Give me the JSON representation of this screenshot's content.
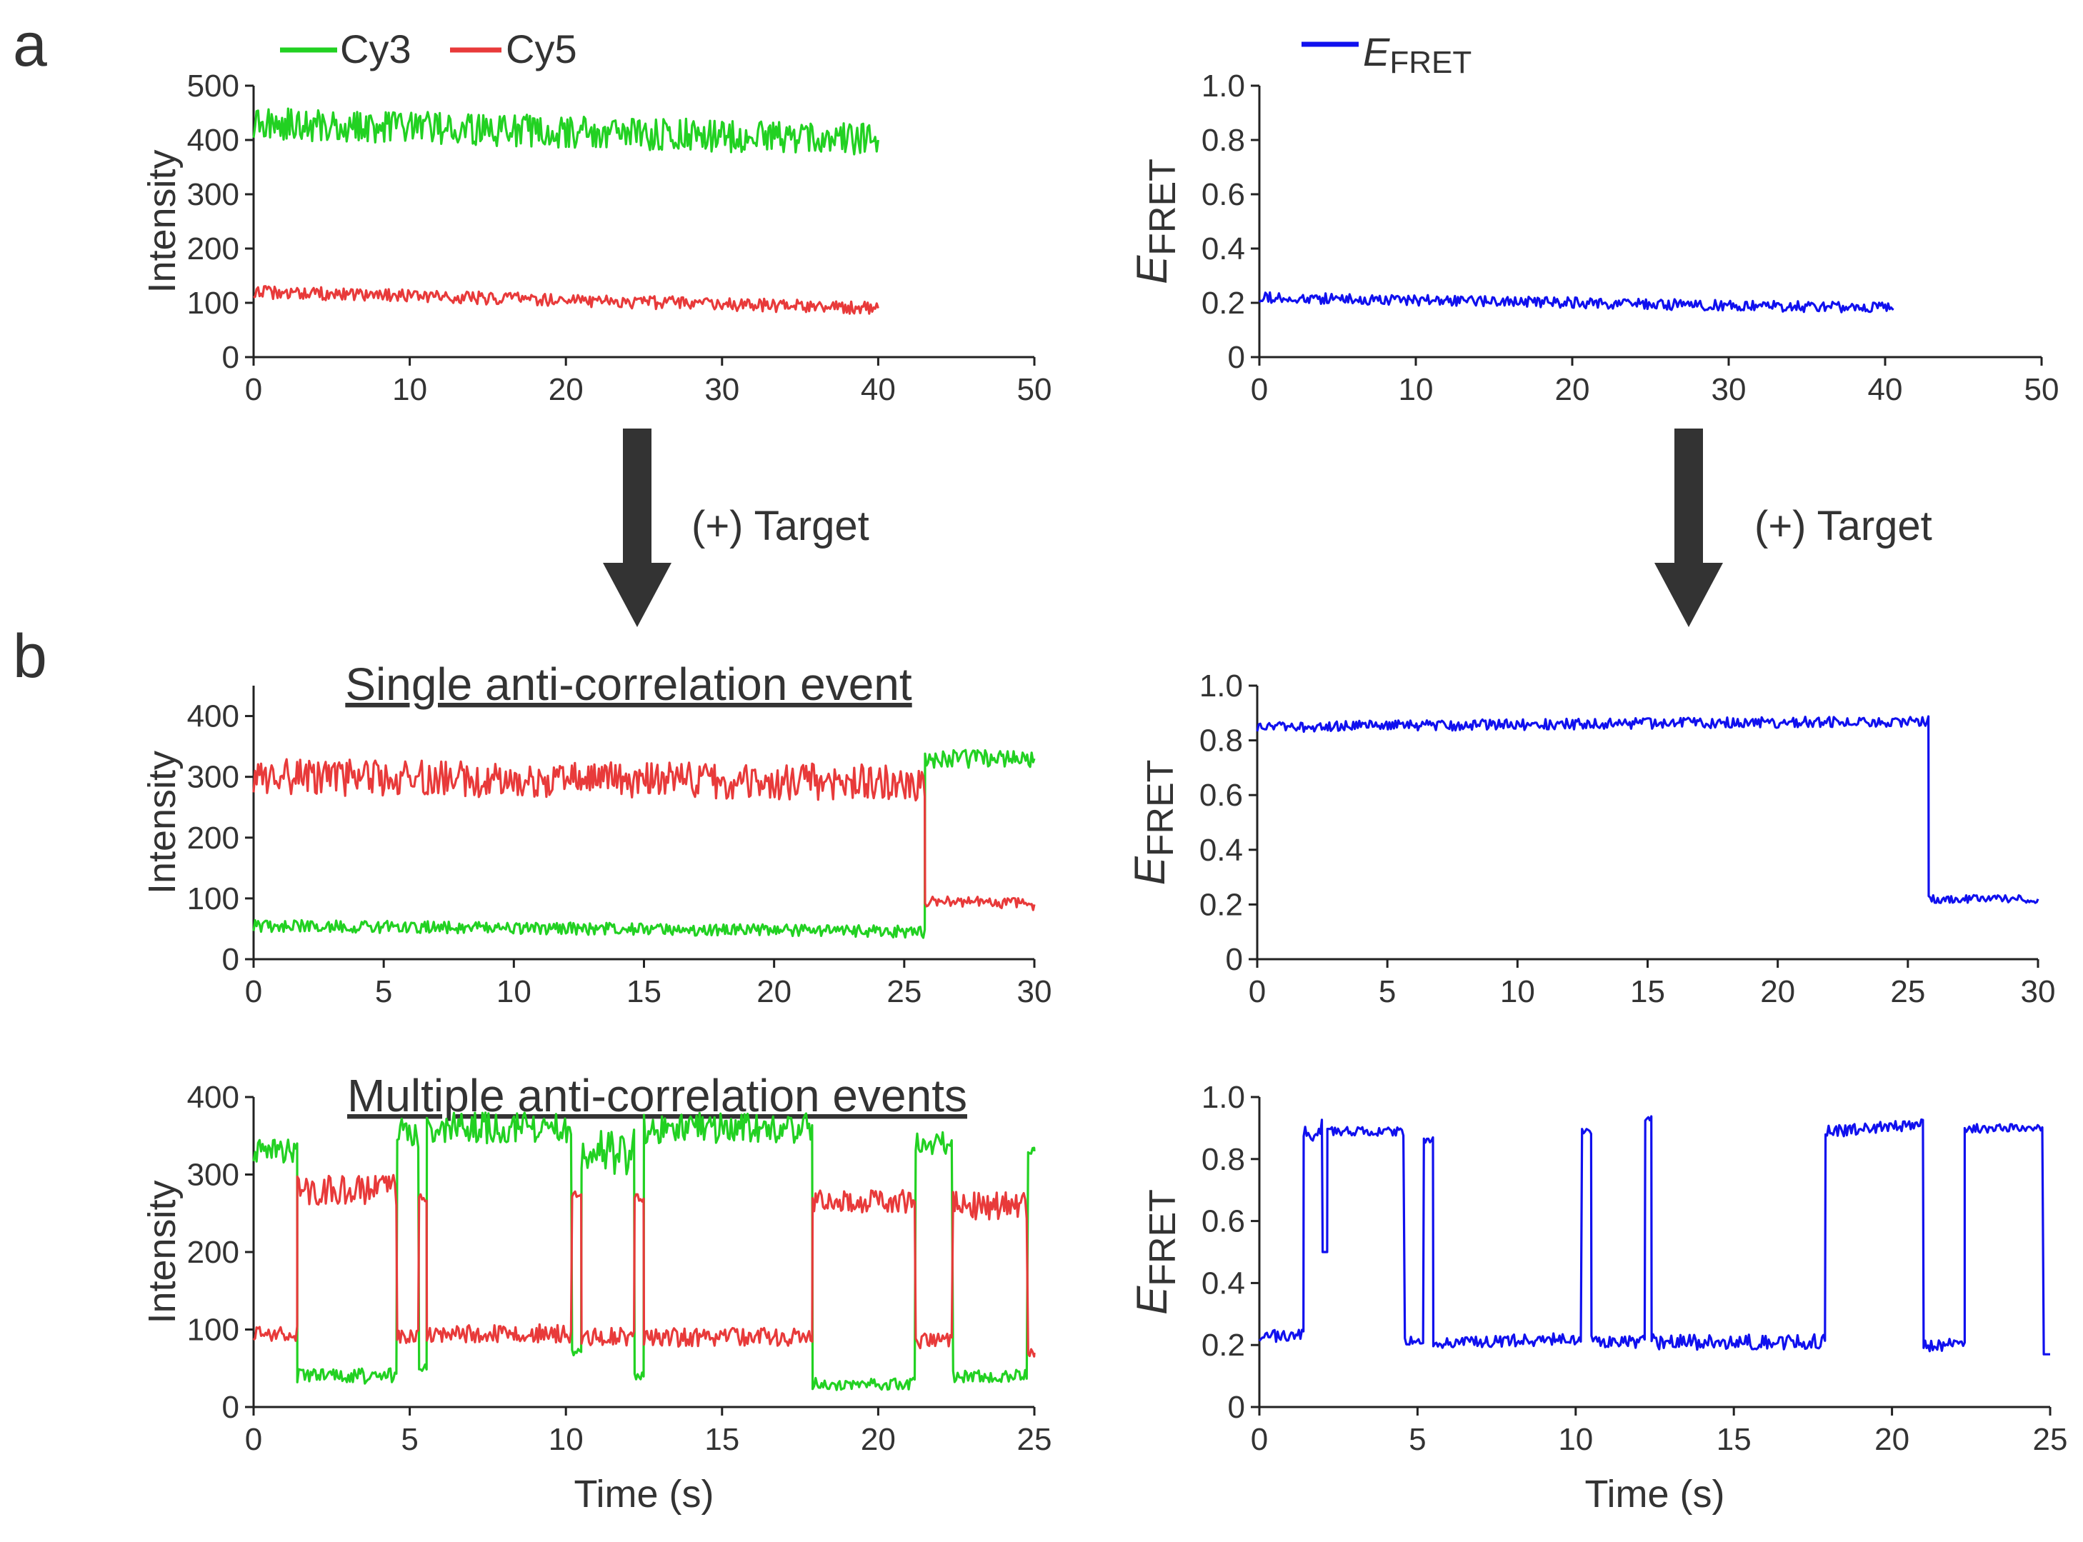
{
  "panel_labels": [
    "a",
    "b"
  ],
  "legend_a_left": [
    {
      "label": "Cy3",
      "color": "#22d122"
    },
    {
      "label": "Cy5",
      "color": "#e83a3a"
    }
  ],
  "legend_a_right": {
    "label_prefix": "E",
    "label_sub": "FRET",
    "color": "#1010ee"
  },
  "arrows": [
    {
      "label": "(+) Target"
    },
    {
      "label": "(+) Target"
    }
  ],
  "titles": {
    "single": "Single anti-correlation event",
    "multiple": "Multiple anti-correlation events"
  },
  "axis_titles": {
    "intensity": "Intensity",
    "efret_prefix": "E",
    "efret_sub": "FRET",
    "time": "Time (s)"
  },
  "chart_data": [
    {
      "id": "a_intensity",
      "type": "line",
      "xlabel": "",
      "ylabel": "Intensity",
      "xlim": [
        0,
        50
      ],
      "ylim": [
        0,
        500
      ],
      "xticks": [
        "0",
        "10",
        "20",
        "30",
        "40",
        "50"
      ],
      "yticks": [
        "0",
        "100",
        "200",
        "300",
        "400",
        "500"
      ],
      "series": [
        {
          "name": "Cy3",
          "color": "#22d122",
          "segments": [
            {
              "t0": 0,
              "t1": 40,
              "v0": 430,
              "v1": 400,
              "noise": 30
            }
          ]
        },
        {
          "name": "Cy5",
          "color": "#e83a3a",
          "segments": [
            {
              "t0": 0,
              "t1": 40,
              "v0": 120,
              "v1": 90,
              "noise": 12
            }
          ]
        }
      ]
    },
    {
      "id": "a_efret",
      "type": "line",
      "xlabel": "",
      "ylabel": "EFRET",
      "xlim": [
        0,
        50
      ],
      "ylim": [
        0,
        1.0
      ],
      "xticks": [
        "0",
        "10",
        "20",
        "30",
        "40",
        "50"
      ],
      "yticks": [
        "0",
        "0.2",
        "0.4",
        "0.6",
        "0.8",
        "1.0"
      ],
      "series": [
        {
          "name": "EFRET",
          "color": "#1010ee",
          "segments": [
            {
              "t0": 0,
              "t1": 40.5,
              "v0": 0.22,
              "v1": 0.18,
              "noise": 0.02
            }
          ]
        }
      ]
    },
    {
      "id": "b1_intensity",
      "type": "line",
      "title": "Single anti-correlation event",
      "xlabel": "",
      "ylabel": "Intensity",
      "xlim": [
        0,
        30
      ],
      "ylim": [
        0,
        450
      ],
      "xticks": [
        "0",
        "5",
        "10",
        "15",
        "20",
        "25",
        "30"
      ],
      "yticks": [
        "0",
        "100",
        "200",
        "300",
        "400"
      ],
      "series": [
        {
          "name": "Cy3",
          "color": "#22d122",
          "segments": [
            {
              "t0": 0,
              "t1": 25.8,
              "v0": 55,
              "v1": 45,
              "noise": 10
            },
            {
              "t0": 25.8,
              "t1": 30,
              "v0": 330,
              "v1": 330,
              "noise": 15
            }
          ]
        },
        {
          "name": "Cy5",
          "color": "#e83a3a",
          "segments": [
            {
              "t0": 0,
              "t1": 25.8,
              "v0": 300,
              "v1": 290,
              "noise": 30
            },
            {
              "t0": 25.8,
              "t1": 30,
              "v0": 95,
              "v1": 90,
              "noise": 10
            }
          ]
        }
      ]
    },
    {
      "id": "b1_efret",
      "type": "line",
      "xlabel": "",
      "ylabel": "EFRET",
      "xlim": [
        0,
        30
      ],
      "ylim": [
        0,
        1.0
      ],
      "xticks": [
        "0",
        "5",
        "10",
        "15",
        "20",
        "25",
        "30"
      ],
      "yticks": [
        "0",
        "0.2",
        "0.4",
        "0.6",
        "0.8",
        "1.0"
      ],
      "series": [
        {
          "name": "EFRET",
          "color": "#1010ee",
          "segments": [
            {
              "t0": 0,
              "t1": 25.8,
              "v0": 0.85,
              "v1": 0.87,
              "noise": 0.02
            },
            {
              "t0": 25.8,
              "t1": 30,
              "v0": 0.22,
              "v1": 0.22,
              "noise": 0.015
            }
          ]
        }
      ]
    },
    {
      "id": "b2_intensity",
      "type": "line",
      "title": "Multiple anti-correlation events",
      "xlabel": "Time (s)",
      "ylabel": "Intensity",
      "xlim": [
        0,
        25
      ],
      "ylim": [
        0,
        400
      ],
      "xticks": [
        "0",
        "5",
        "10",
        "15",
        "20",
        "25"
      ],
      "yticks": [
        "0",
        "100",
        "200",
        "300",
        "400"
      ],
      "series": [
        {
          "name": "Cy3",
          "color": "#22d122",
          "segments": [
            {
              "t0": 0,
              "t1": 1.4,
              "v0": 330,
              "v1": 330,
              "noise": 15
            },
            {
              "t0": 1.4,
              "t1": 4.6,
              "v0": 40,
              "v1": 40,
              "noise": 10
            },
            {
              "t0": 4.6,
              "t1": 5.3,
              "v0": 350,
              "v1": 350,
              "noise": 25
            },
            {
              "t0": 5.3,
              "t1": 5.55,
              "v0": 50,
              "v1": 50,
              "noise": 5
            },
            {
              "t0": 5.55,
              "t1": 10.2,
              "v0": 360,
              "v1": 360,
              "noise": 20
            },
            {
              "t0": 10.2,
              "t1": 10.5,
              "v0": 70,
              "v1": 70,
              "noise": 5
            },
            {
              "t0": 10.5,
              "t1": 12.2,
              "v0": 330,
              "v1": 330,
              "noise": 30
            },
            {
              "t0": 12.2,
              "t1": 12.5,
              "v0": 40,
              "v1": 40,
              "noise": 5
            },
            {
              "t0": 12.5,
              "t1": 17.9,
              "v0": 360,
              "v1": 360,
              "noise": 20
            },
            {
              "t0": 17.9,
              "t1": 21.2,
              "v0": 30,
              "v1": 30,
              "noise": 8
            },
            {
              "t0": 21.2,
              "t1": 22.4,
              "v0": 340,
              "v1": 340,
              "noise": 15
            },
            {
              "t0": 22.4,
              "t1": 24.8,
              "v0": 40,
              "v1": 40,
              "noise": 8
            },
            {
              "t0": 24.8,
              "t1": 25,
              "v0": 330,
              "v1": 330,
              "noise": 5
            }
          ]
        },
        {
          "name": "Cy5",
          "color": "#e83a3a",
          "segments": [
            {
              "t0": 0,
              "t1": 1.4,
              "v0": 95,
              "v1": 95,
              "noise": 10
            },
            {
              "t0": 1.4,
              "t1": 4.6,
              "v0": 280,
              "v1": 280,
              "noise": 20
            },
            {
              "t0": 4.6,
              "t1": 5.3,
              "v0": 90,
              "v1": 90,
              "noise": 10
            },
            {
              "t0": 5.3,
              "t1": 5.55,
              "v0": 270,
              "v1": 270,
              "noise": 5
            },
            {
              "t0": 5.55,
              "t1": 10.2,
              "v0": 95,
              "v1": 95,
              "noise": 12
            },
            {
              "t0": 10.2,
              "t1": 10.5,
              "v0": 275,
              "v1": 275,
              "noise": 5
            },
            {
              "t0": 10.5,
              "t1": 12.2,
              "v0": 90,
              "v1": 90,
              "noise": 12
            },
            {
              "t0": 12.2,
              "t1": 12.5,
              "v0": 270,
              "v1": 270,
              "noise": 5
            },
            {
              "t0": 12.5,
              "t1": 17.9,
              "v0": 90,
              "v1": 90,
              "noise": 12
            },
            {
              "t0": 17.9,
              "t1": 21.2,
              "v0": 265,
              "v1": 265,
              "noise": 15
            },
            {
              "t0": 21.2,
              "t1": 22.4,
              "v0": 85,
              "v1": 85,
              "noise": 10
            },
            {
              "t0": 22.4,
              "t1": 24.8,
              "v0": 260,
              "v1": 260,
              "noise": 18
            },
            {
              "t0": 24.8,
              "t1": 25,
              "v0": 70,
              "v1": 70,
              "noise": 5
            }
          ]
        }
      ]
    },
    {
      "id": "b2_efret",
      "type": "line",
      "xlabel": "Time (s)",
      "ylabel": "EFRET",
      "xlim": [
        0,
        25
      ],
      "ylim": [
        0,
        1.0
      ],
      "xticks": [
        "0",
        "5",
        "10",
        "15",
        "20",
        "25"
      ],
      "yticks": [
        "0",
        "0.2",
        "0.4",
        "0.6",
        "0.8",
        "1.0"
      ],
      "series": [
        {
          "name": "EFRET",
          "color": "#1010ee",
          "segments": [
            {
              "t0": 0,
              "t1": 1.4,
              "v0": 0.23,
              "v1": 0.23,
              "noise": 0.02
            },
            {
              "t0": 1.4,
              "t1": 2.0,
              "v0": 0.88,
              "v1": 0.9,
              "noise": 0.03
            },
            {
              "t0": 2.0,
              "t1": 2.15,
              "v0": 0.5,
              "v1": 0.5,
              "noise": 0.0
            },
            {
              "t0": 2.15,
              "t1": 4.6,
              "v0": 0.89,
              "v1": 0.89,
              "noise": 0.015
            },
            {
              "t0": 4.6,
              "t1": 5.2,
              "v0": 0.22,
              "v1": 0.22,
              "noise": 0.02
            },
            {
              "t0": 5.2,
              "t1": 5.5,
              "v0": 0.86,
              "v1": 0.86,
              "noise": 0.01
            },
            {
              "t0": 5.5,
              "t1": 10.2,
              "v0": 0.21,
              "v1": 0.22,
              "noise": 0.02
            },
            {
              "t0": 10.2,
              "t1": 10.5,
              "v0": 0.89,
              "v1": 0.89,
              "noise": 0.01
            },
            {
              "t0": 10.5,
              "t1": 12.2,
              "v0": 0.21,
              "v1": 0.21,
              "noise": 0.02
            },
            {
              "t0": 12.2,
              "t1": 12.4,
              "v0": 0.93,
              "v1": 0.93,
              "noise": 0.01
            },
            {
              "t0": 12.4,
              "t1": 17.9,
              "v0": 0.21,
              "v1": 0.21,
              "noise": 0.025
            },
            {
              "t0": 17.9,
              "t1": 21.0,
              "v0": 0.89,
              "v1": 0.91,
              "noise": 0.02
            },
            {
              "t0": 21.0,
              "t1": 22.3,
              "v0": 0.2,
              "v1": 0.2,
              "noise": 0.02
            },
            {
              "t0": 22.3,
              "t1": 24.8,
              "v0": 0.9,
              "v1": 0.9,
              "noise": 0.015
            },
            {
              "t0": 24.8,
              "t1": 25,
              "v0": 0.17,
              "v1": 0.17,
              "noise": 0.0
            }
          ]
        }
      ]
    }
  ]
}
